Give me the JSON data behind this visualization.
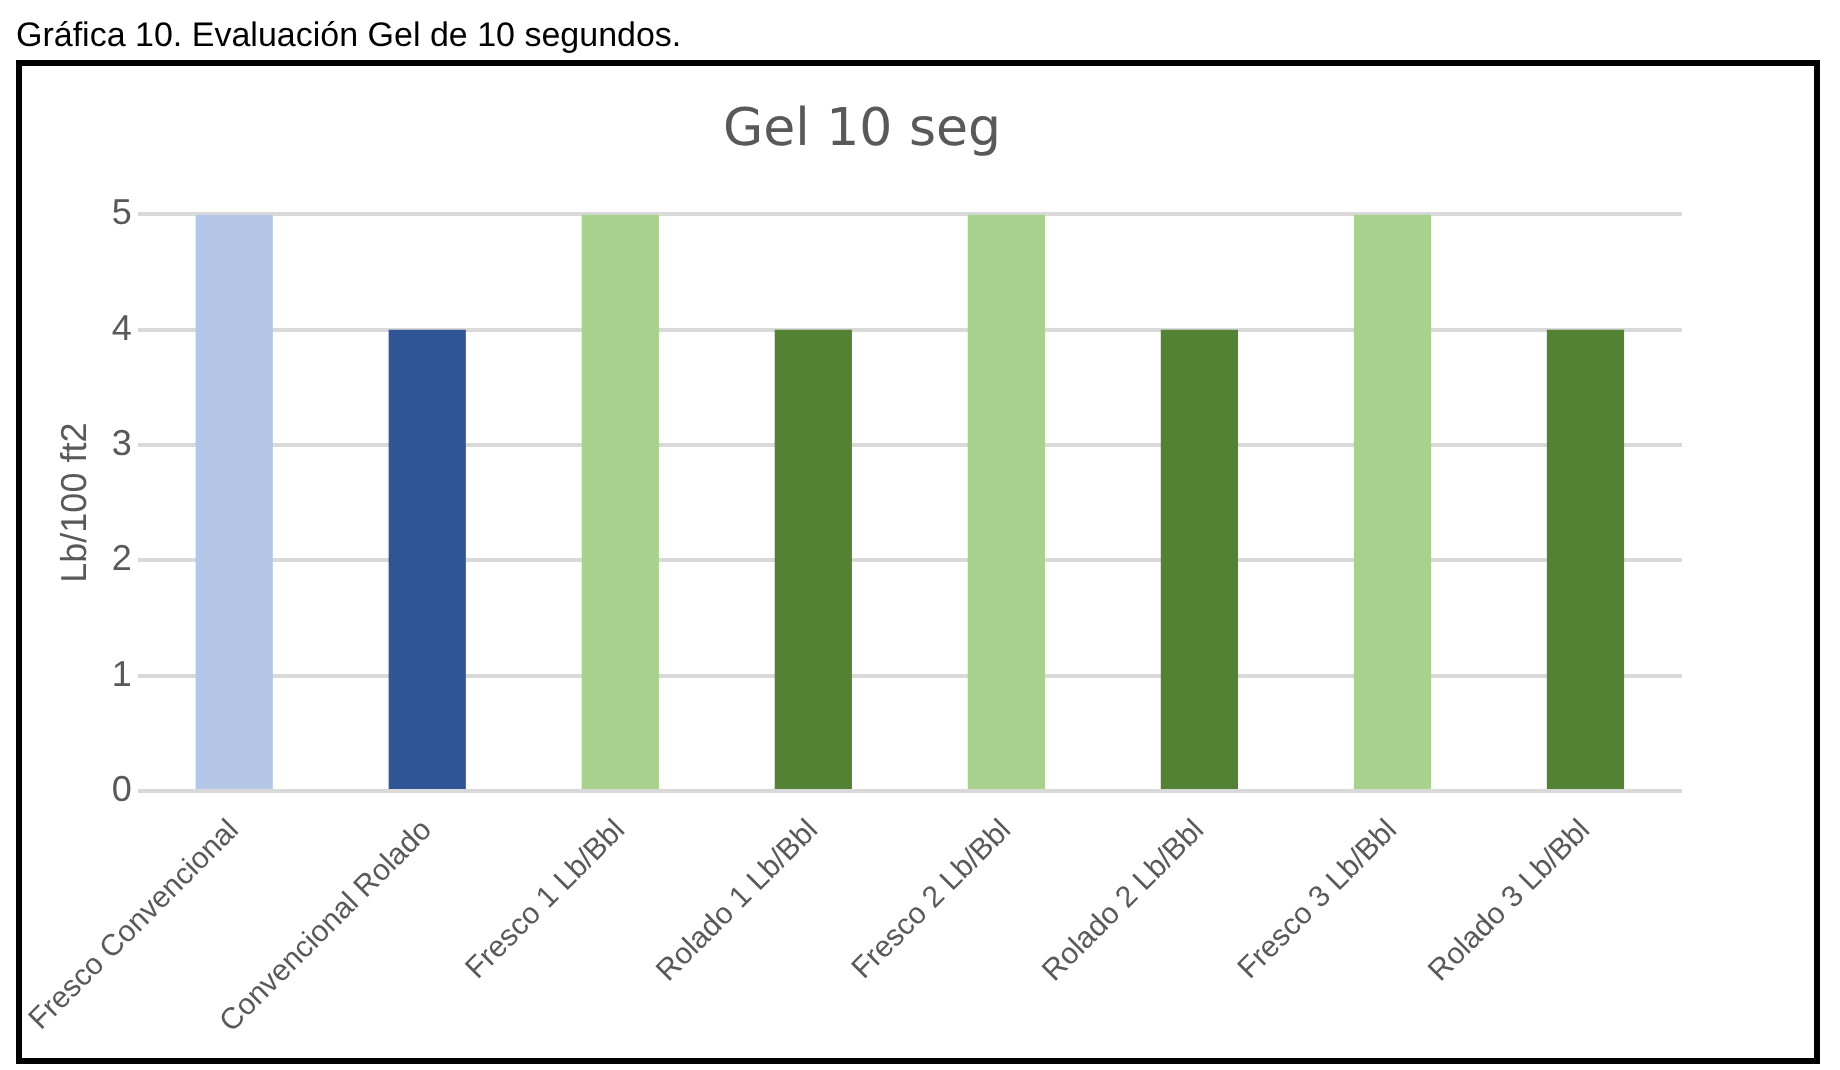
{
  "chart_data": {
    "type": "bar",
    "title": "Gel 10 seg",
    "ylabel": "Lb/100 ft2",
    "annotations": [
      "Gráfica 10. Evaluación Gel de 10 segundos."
    ],
    "categories": [
      "Fresco Convencional",
      "Convencional Rolado",
      "Fresco 1 Lb/Bbl",
      "Rolado 1 Lb/Bbl",
      "Fresco 2 Lb/Bbl",
      "Rolado 2 Lb/Bbl",
      "Fresco 3 Lb/Bbl",
      "Rolado 3 Lb/Bbl"
    ],
    "values": [
      5,
      4,
      5,
      4,
      5,
      4,
      5,
      4
    ],
    "colors": [
      "#b4c7e7",
      "#2f5597",
      "#a9d18e",
      "#548235",
      "#a9d18e",
      "#548235",
      "#a9d18e",
      "#548235"
    ],
    "ylim": [
      0,
      5
    ],
    "yticks": [
      0,
      1,
      2,
      3,
      4,
      5
    ],
    "grid": "y",
    "legend": false
  }
}
